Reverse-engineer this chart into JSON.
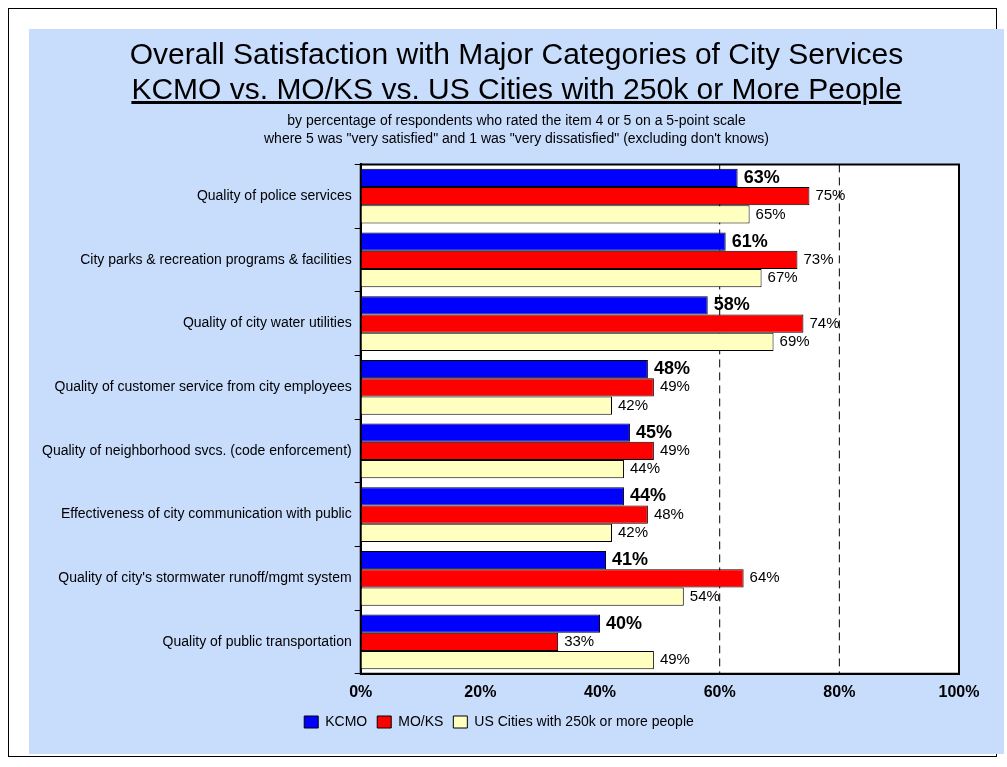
{
  "chart_data": {
    "type": "bar",
    "orientation": "horizontal",
    "title": "Overall Satisfaction with Major Categories of City Services",
    "subtitle": "KCMO vs. MO/KS vs. US Cities with 250k or More People",
    "annotations": [
      "by percentage of respondents who rated the item 4 or 5 on a 5-point scale",
      "where 5 was \"very satisfied\" and 1 was \"very dissatisfied\" (excluding don't knows)"
    ],
    "categories": [
      "Quality of police services",
      "City parks & recreation programs & facilities",
      "Quality of city water utilities",
      "Quality of customer service from city employees",
      "Quality of neighborhood svcs. (code enforcement)",
      "Effectiveness of city communication with public",
      "Quality of city's stormwater runoff/mgmt system",
      "Quality of public transportation"
    ],
    "series": [
      {
        "name": "KCMO",
        "color": "#0000ff",
        "values": [
          63,
          61,
          58,
          48,
          45,
          44,
          41,
          40
        ],
        "value_labels": [
          "63%",
          "61%",
          "58%",
          "48%",
          "45%",
          "44%",
          "41%",
          "40%"
        ]
      },
      {
        "name": "MO/KS",
        "color": "#ff0000",
        "values": [
          75,
          73,
          74,
          49,
          49,
          48,
          64,
          33
        ],
        "value_labels": [
          "75%",
          "73%",
          "74%",
          "49%",
          "49%",
          "48%",
          "64%",
          "33%"
        ]
      },
      {
        "name": "US Cities with 250k or more people",
        "color": "#ffffc0",
        "values": [
          65,
          67,
          69,
          42,
          44,
          42,
          54,
          49
        ],
        "value_labels": [
          "65%",
          "67%",
          "69%",
          "42%",
          "44%",
          "42%",
          "54%",
          "49%"
        ]
      }
    ],
    "xlim": [
      0,
      100
    ],
    "xticks": [
      {
        "value": 0,
        "label": "0%"
      },
      {
        "value": 20,
        "label": "20%"
      },
      {
        "value": 40,
        "label": "40%"
      },
      {
        "value": 60,
        "label": "60%"
      },
      {
        "value": 80,
        "label": "80%"
      },
      {
        "value": 100,
        "label": "100%"
      }
    ],
    "ref_lines": [
      {
        "axis": "x",
        "value": 60,
        "line_style": "dashed",
        "color": "#000000"
      },
      {
        "axis": "x",
        "value": 80,
        "line_style": "dashed",
        "color": "#000000"
      }
    ],
    "legend": "bottom",
    "grid": false
  }
}
